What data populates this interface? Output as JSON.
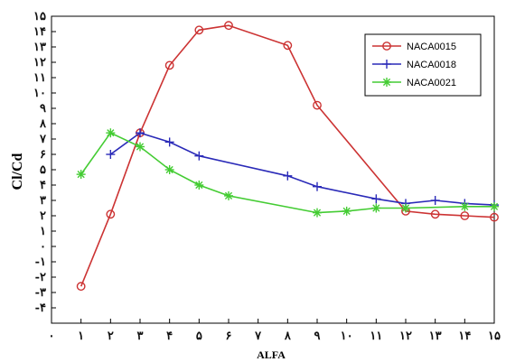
{
  "chart_data": {
    "type": "line",
    "xlabel": "ALFA",
    "ylabel": "Cl/Cd",
    "xlim": [
      0,
      15
    ],
    "ylim": [
      -5,
      15
    ],
    "x_tick_labels": [
      "٠",
      "١",
      "٢",
      "٣",
      "۴",
      "۵",
      "۶",
      "٧",
      "٨",
      "٩",
      "١٠",
      "١١",
      "١٢",
      "١٣",
      "١۴",
      "١۵"
    ],
    "y_tick_labels": [
      "-۴",
      "-٣",
      "-٢",
      "-١",
      "٠",
      "١",
      "٢",
      "٣",
      "۴",
      "۵",
      "۶",
      "٧",
      "٨",
      "٩",
      "١٠",
      "١١",
      "١٢",
      "١٣",
      "١۴",
      "١۵"
    ],
    "grid": false,
    "legend_position": "top-right",
    "series": [
      {
        "name": "NACA0015",
        "color": "#cc3333",
        "marker": "circle",
        "x": [
          1,
          2,
          3,
          4,
          5,
          6,
          8,
          9,
          12,
          13,
          14,
          15
        ],
        "y": [
          -2.6,
          2.1,
          7.4,
          11.8,
          14.1,
          14.4,
          13.1,
          9.2,
          2.3,
          2.1,
          2.0,
          1.9
        ]
      },
      {
        "name": "NACA0018",
        "color": "#2a2ab8",
        "marker": "plus",
        "x": [
          2,
          3,
          4,
          5,
          8,
          9,
          11,
          12,
          13,
          14,
          15
        ],
        "y": [
          6.0,
          7.4,
          6.8,
          5.9,
          4.6,
          3.9,
          3.1,
          2.8,
          3.0,
          2.8,
          2.7
        ]
      },
      {
        "name": "NACA0021",
        "color": "#44cc33",
        "marker": "asterisk",
        "x": [
          1,
          2,
          3,
          4,
          5,
          6,
          9,
          10,
          11,
          12,
          14,
          15
        ],
        "y": [
          4.7,
          7.4,
          6.5,
          5.0,
          4.0,
          3.3,
          2.2,
          2.3,
          2.5,
          2.5,
          2.6,
          2.6
        ]
      }
    ]
  }
}
